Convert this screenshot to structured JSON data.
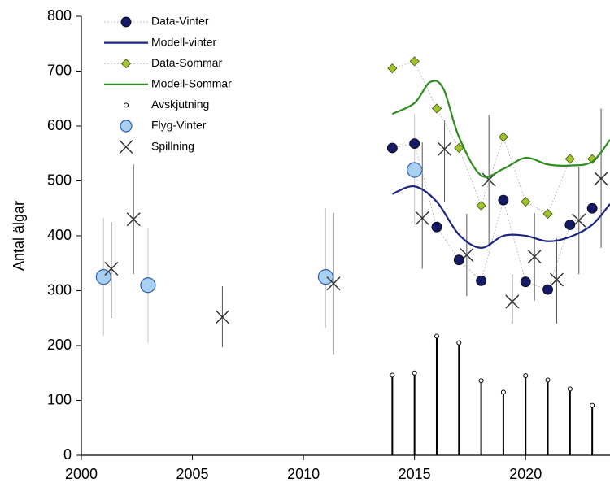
{
  "chart_data": {
    "type": "line",
    "y_label": "Antal älgar",
    "xlim": [
      2000,
      2023.8
    ],
    "xticks": [
      2000,
      2005,
      2010,
      2015,
      2020
    ],
    "ylim": [
      0,
      800
    ],
    "yticks": [
      0,
      100,
      200,
      300,
      400,
      500,
      600,
      700,
      800
    ],
    "legend": "top-left",
    "series": [
      {
        "name": "Data-Vinter",
        "kind": "points",
        "marker": "circle",
        "color": "#141a66",
        "connect": true,
        "x": [
          2014,
          2015,
          2016,
          2017,
          2018,
          2019,
          2020,
          2021,
          2022,
          2023
        ],
        "values": [
          560,
          568,
          416,
          356,
          318,
          465,
          316,
          302,
          420,
          450
        ]
      },
      {
        "name": "Modell-vinter",
        "kind": "line",
        "color": "#1c2580",
        "x": [
          2014,
          2015,
          2016,
          2017,
          2018,
          2019,
          2020,
          2021,
          2022,
          2023,
          2023.8
        ],
        "values": [
          476,
          490,
          462,
          402,
          378,
          400,
          400,
          390,
          398,
          420,
          458
        ]
      },
      {
        "name": "Data-Sommar",
        "kind": "points",
        "marker": "diamond",
        "color": "#9fc42c",
        "connect": true,
        "x": [
          2014,
          2015,
          2016,
          2017,
          2018,
          2019,
          2020,
          2021,
          2022,
          2023
        ],
        "values": [
          705,
          718,
          632,
          560,
          455,
          580,
          462,
          440,
          540,
          540
        ]
      },
      {
        "name": "Modell-Sommar",
        "kind": "line",
        "color": "#2e8b1e",
        "x": [
          2014,
          2015,
          2015.7,
          2016.3,
          2017,
          2018,
          2019,
          2020,
          2021,
          2022,
          2023,
          2023.8
        ],
        "values": [
          622,
          642,
          680,
          668,
          580,
          510,
          522,
          542,
          530,
          528,
          535,
          575
        ]
      },
      {
        "name": "Avskjutning",
        "kind": "stem",
        "marker": "circle-small",
        "color": "#000000",
        "x": [
          2014,
          2015,
          2016,
          2017,
          2018,
          2019,
          2020,
          2021,
          2022,
          2023
        ],
        "values": [
          146,
          150,
          217,
          205,
          136,
          115,
          145,
          137,
          121,
          91
        ]
      },
      {
        "name": "Flyg-Vinter",
        "kind": "points",
        "marker": "big-circle",
        "color": "#a8d0f2",
        "connect": false,
        "x": [
          2001,
          2003,
          2011,
          2015
        ],
        "values": [
          325,
          310,
          325,
          520
        ],
        "lower": [
          218,
          205,
          232,
          420
        ],
        "upper": [
          432,
          415,
          450,
          622
        ]
      },
      {
        "name": "Spillning",
        "kind": "points",
        "marker": "cross",
        "color": "#333333",
        "connect": false,
        "x": [
          2001.35,
          2002.35,
          2006.35,
          2011.35,
          2015.35,
          2016.35,
          2017.35,
          2018.35,
          2019.4,
          2020.4,
          2021.4,
          2022.4,
          2023.4
        ],
        "values": [
          340,
          430,
          252,
          313,
          432,
          558,
          365,
          502,
          280,
          362,
          320,
          428,
          504
        ],
        "lower": [
          250,
          330,
          197,
          183,
          340,
          462,
          290,
          380,
          240,
          282,
          240,
          330,
          378
        ],
        "upper": [
          425,
          530,
          308,
          442,
          570,
          610,
          440,
          620,
          330,
          441,
          395,
          525,
          632
        ]
      }
    ]
  }
}
